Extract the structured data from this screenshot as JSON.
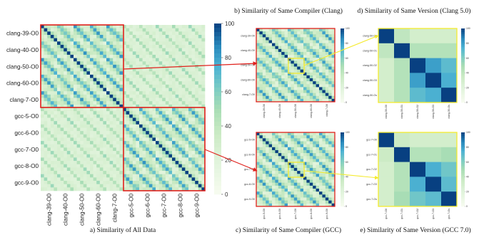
{
  "chart_data": [
    {
      "id": "all",
      "type": "heatmap",
      "caption": "a) Similarity of All Data",
      "row_labels": [
        "clang-39-O0",
        "clang-40-O0",
        "clang-50-O0",
        "clang-60-O0",
        "clang-7-O0",
        "gcc-5-O0",
        "gcc-6-O0",
        "gcc-7-O0",
        "gcc-8-O0",
        "gcc-9-O0"
      ],
      "col_labels": [
        "clang-39-O0",
        "clang-40-O0",
        "clang-50-O0",
        "clang-60-O0",
        "clang-7-O0",
        "gcc-5-O0",
        "gcc-6-O0",
        "gcc-7-O0",
        "gcc-8-O0",
        "gcc-9-O0"
      ],
      "cells_per_group": 5,
      "colorbar_ticks": [
        0,
        20,
        40,
        60,
        80,
        100
      ],
      "range": [
        0,
        100
      ]
    },
    {
      "id": "clang-compiler",
      "type": "heatmap",
      "caption": "b) Similarity of Same Compiler (Clang)",
      "row_labels": [
        "clang-39-O0",
        "clang-40-O0",
        "clang-50-O0",
        "clang-60-O0",
        "clang-7-O0"
      ],
      "col_labels": [
        "clang-39-O0",
        "clang-40-O0",
        "clang-50-O0",
        "clang-60-O0",
        "clang-7-O0"
      ],
      "cells_per_group": 5,
      "colorbar_ticks": [
        0,
        20,
        40,
        60,
        80,
        100
      ],
      "range": [
        0,
        100
      ]
    },
    {
      "id": "gcc-compiler",
      "type": "heatmap",
      "caption": "c) Similarity of Same Compiler (GCC)",
      "row_labels": [
        "gcc-5-O0",
        "gcc-6-O0",
        "gcc-7-O0",
        "gcc-8-O0",
        "gcc-9-O0"
      ],
      "col_labels": [
        "gcc-5-O0",
        "gcc-6-O0",
        "gcc-7-O0",
        "gcc-8-O0",
        "gcc-9-O0"
      ],
      "cells_per_group": 5,
      "colorbar_ticks": [
        0,
        20,
        40,
        60,
        80,
        100
      ],
      "range": [
        0,
        100
      ]
    },
    {
      "id": "clang-version",
      "type": "heatmap",
      "caption": "d) Similarity of Same Version (Clang 5.0)",
      "row_labels": [
        "clang-50-O0",
        "clang-50-O1",
        "clang-50-O2",
        "clang-50-O3",
        "clang-50-Os"
      ],
      "col_labels": [
        "clang-50-O0",
        "clang-50-O1",
        "clang-50-O2",
        "clang-50-O3",
        "clang-50-Os"
      ],
      "values": [
        [
          100,
          40,
          30,
          30,
          30
        ],
        [
          40,
          100,
          45,
          45,
          45
        ],
        [
          30,
          45,
          100,
          80,
          70
        ],
        [
          30,
          45,
          80,
          100,
          75
        ],
        [
          30,
          45,
          70,
          75,
          100
        ]
      ],
      "colorbar_ticks": [
        0,
        20,
        40,
        60,
        80,
        100
      ],
      "range": [
        0,
        100
      ]
    },
    {
      "id": "gcc-version",
      "type": "heatmap",
      "caption": "e) Similarity of Same Version (GCC 7.0)",
      "row_labels": [
        "gcc-7-O0",
        "gcc-7-O1",
        "gcc-7-O2",
        "gcc-7-O3",
        "gcc-7-Os"
      ],
      "col_labels": [
        "gcc-7-O0",
        "gcc-7-O1",
        "gcc-7-O2",
        "gcc-7-O3",
        "gcc-7-Os"
      ],
      "values": [
        [
          100,
          35,
          30,
          30,
          30
        ],
        [
          35,
          100,
          45,
          45,
          50
        ],
        [
          30,
          45,
          100,
          75,
          65
        ],
        [
          30,
          45,
          75,
          100,
          70
        ],
        [
          30,
          50,
          65,
          70,
          100
        ]
      ],
      "colorbar_ticks": [
        0,
        20,
        40,
        60,
        80,
        100
      ],
      "range": [
        0,
        100
      ]
    }
  ]
}
